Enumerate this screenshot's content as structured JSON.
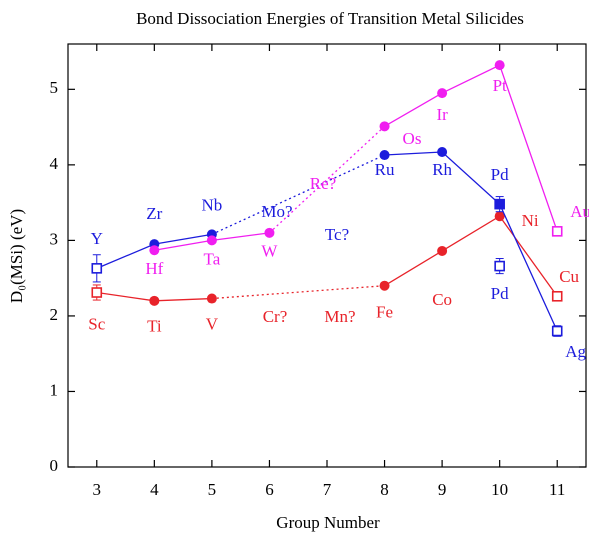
{
  "chart_data": {
    "type": "line",
    "title": "Bond Dissociation Energies of Transition Metal Silicides",
    "xlabel": "Group Number",
    "ylabel": "D₀(MSi) (eV)",
    "xlim": [
      2.5,
      11.5
    ],
    "ylim": [
      0,
      5.6
    ],
    "xticks": [
      3,
      4,
      5,
      6,
      7,
      8,
      9,
      10,
      11
    ],
    "yticks": [
      0,
      1,
      2,
      3,
      4,
      5
    ],
    "gap_style": "dotted",
    "series": [
      {
        "color": "#e8232a",
        "x": [
          3,
          4,
          5,
          6,
          7,
          8,
          9,
          10,
          11
        ],
        "values": [
          2.31,
          2.2,
          2.23,
          null,
          null,
          2.4,
          2.86,
          3.32,
          2.26
        ],
        "errors": [
          0.1,
          null,
          null,
          null,
          null,
          null,
          null,
          null,
          0.04
        ],
        "markers": [
          "open-square",
          "circle",
          "circle",
          null,
          null,
          "circle",
          "circle",
          "circle",
          "open-square"
        ],
        "labels": [
          "Sc",
          "Ti",
          "V",
          "Cr?",
          "Mn?",
          "Fe",
          "Co",
          "Ni",
          "Cu"
        ]
      },
      {
        "color": "#1c1cdc",
        "x": [
          3,
          4,
          5,
          6,
          7,
          8,
          9,
          10,
          11
        ],
        "values": [
          2.63,
          2.95,
          3.08,
          null,
          null,
          4.13,
          4.17,
          3.48,
          1.8
        ],
        "errors": [
          0.18,
          null,
          null,
          null,
          null,
          null,
          null,
          0.1,
          0.07
        ],
        "markers": [
          "open-square",
          "circle",
          "circle",
          null,
          null,
          "circle",
          "circle",
          "filled-square",
          "open-square"
        ],
        "labels": [
          "Y",
          "Zr",
          "Nb",
          "Mo?",
          "Tc?",
          "Ru",
          "Rh",
          "Pd",
          "Ag"
        ]
      },
      {
        "color": "#f01ef0",
        "x": [
          4,
          5,
          6,
          7,
          8,
          9,
          10,
          11
        ],
        "values": [
          2.87,
          3.0,
          3.1,
          null,
          4.51,
          4.95,
          5.32,
          3.12
        ],
        "errors": [
          null,
          null,
          null,
          null,
          null,
          null,
          null,
          0.04
        ],
        "markers": [
          "circle",
          "circle",
          "circle",
          null,
          "circle",
          "circle",
          "circle",
          "open-square"
        ],
        "labels": [
          "Hf",
          "Ta",
          "W",
          "Re?",
          "Os",
          "Ir",
          "Pt",
          "Au"
        ]
      },
      {
        "color": "#1c1cdc",
        "x": [
          10
        ],
        "values": [
          2.66
        ],
        "errors": [
          0.1
        ],
        "markers": [
          "open-square"
        ],
        "labels": [
          "Pd"
        ]
      }
    ]
  }
}
